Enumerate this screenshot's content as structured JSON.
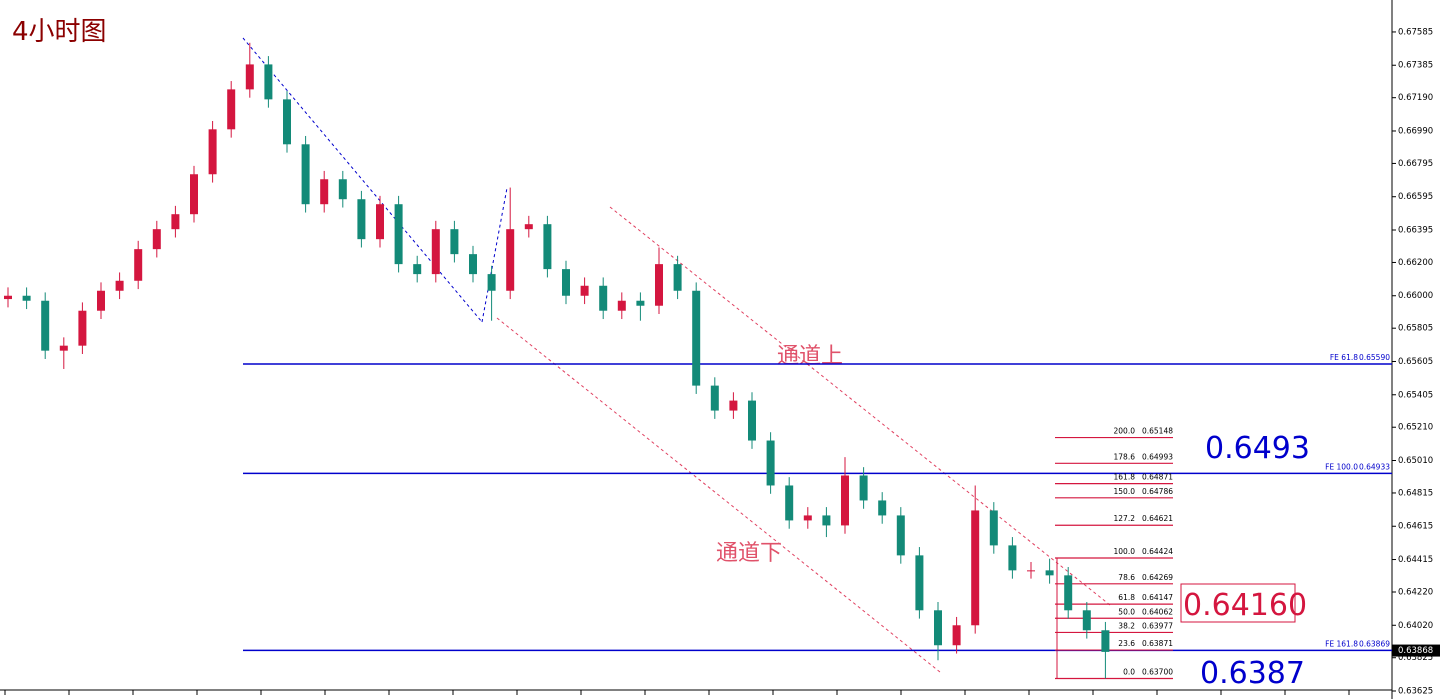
{
  "chart_data": {
    "type": "candlestick",
    "title": "4小时图",
    "ylim": [
      0.63577,
      0.67777
    ],
    "yticks": [
      0.67585,
      0.67385,
      {
        "value": 0.6719,
        "label": "0.67190"
      },
      {
        "value": 0.6699,
        "label": "0.66990"
      },
      0.66795,
      0.66595,
      0.66395,
      {
        "value": 0.662,
        "label": "0.66200"
      },
      {
        "value": 0.66,
        "label": "0.66000"
      },
      0.65805,
      0.65605,
      0.65405,
      {
        "value": 0.6521,
        "label": "0.65210"
      },
      {
        "value": 0.6501,
        "label": "0.65010"
      },
      0.64815,
      0.64615,
      0.64415,
      {
        "value": 0.6422,
        "label": "0.64220"
      },
      {
        "value": 0.6402,
        "label": "0.64020"
      },
      0.63825,
      0.63625
    ],
    "up_color": "#d4163f",
    "down_color": "#138a78",
    "open": [
      0.6598,
      0.66,
      0.6597,
      0.6567,
      0.657,
      0.6591,
      0.6603,
      0.6609,
      0.6628,
      0.664,
      0.6649,
      0.6673,
      0.67,
      0.6724,
      0.6739,
      0.6718,
      0.6691,
      0.6655,
      0.667,
      0.6658,
      0.6634,
      0.6655,
      0.6619,
      0.6613,
      0.664,
      0.6625,
      0.6613,
      0.6603,
      0.664,
      0.6643,
      0.6616,
      0.66,
      0.6606,
      0.6591,
      0.6597,
      0.6594,
      0.6619,
      0.6603,
      0.6546,
      0.6531,
      0.6537,
      0.6513,
      0.6486,
      0.6465,
      0.6468,
      0.6462,
      0.6492,
      0.6477,
      0.6468,
      0.6444,
      0.6411,
      0.639,
      0.6402,
      0.6471,
      0.645,
      0.6435,
      0.6435,
      0.6432,
      0.6411,
      0.6399
    ],
    "high": [
      0.6605,
      0.6605,
      0.6602,
      0.6575,
      0.6596,
      0.6608,
      0.6614,
      0.6633,
      0.6645,
      0.6654,
      0.6678,
      0.6705,
      0.6729,
      0.6752,
      0.6744,
      0.6723,
      0.6696,
      0.6675,
      0.6675,
      0.6663,
      0.666,
      0.666,
      0.6624,
      0.6645,
      0.6645,
      0.663,
      0.6618,
      0.6665,
      0.6648,
      0.6648,
      0.6621,
      0.6611,
      0.6611,
      0.6602,
      0.6602,
      0.6629,
      0.6624,
      0.6608,
      0.6551,
      0.6542,
      0.6542,
      0.6518,
      0.6491,
      0.6473,
      0.6473,
      0.6503,
      0.6497,
      0.6482,
      0.6473,
      0.6449,
      0.6416,
      0.6407,
      0.6486,
      0.6476,
      0.6455,
      0.644,
      0.6442,
      0.6437,
      0.6416,
      0.6404
    ],
    "low": [
      0.6593,
      0.6592,
      0.6562,
      0.6556,
      0.6565,
      0.6586,
      0.6598,
      0.6604,
      0.6623,
      0.6635,
      0.6644,
      0.6668,
      0.6695,
      0.6719,
      0.6713,
      0.6686,
      0.665,
      0.665,
      0.6653,
      0.6629,
      0.6629,
      0.6614,
      0.6608,
      0.6608,
      0.662,
      0.6608,
      0.6585,
      0.6598,
      0.6635,
      0.6611,
      0.6595,
      0.6595,
      0.6586,
      0.6586,
      0.6585,
      0.6589,
      0.6598,
      0.6541,
      0.6526,
      0.6526,
      0.6508,
      0.6481,
      0.646,
      0.646,
      0.6455,
      0.6457,
      0.6472,
      0.6463,
      0.6439,
      0.6406,
      0.6381,
      0.6385,
      0.6397,
      0.6445,
      0.643,
      0.643,
      0.6427,
      0.6406,
      0.6394,
      0.637
    ],
    "close": [
      0.66,
      0.6597,
      0.6567,
      0.657,
      0.6591,
      0.6603,
      0.6609,
      0.6628,
      0.664,
      0.6649,
      0.6673,
      0.67,
      0.6724,
      0.6739,
      0.6718,
      0.6691,
      0.6655,
      0.667,
      0.6658,
      0.6634,
      0.6655,
      0.6619,
      0.6613,
      0.664,
      0.6625,
      0.6613,
      0.6603,
      0.664,
      0.6643,
      0.6616,
      0.66,
      0.6606,
      0.6591,
      0.6597,
      0.6594,
      0.6619,
      0.6603,
      0.6546,
      0.6531,
      0.6537,
      0.6513,
      0.6486,
      0.6465,
      0.6468,
      0.6462,
      0.6492,
      0.6477,
      0.6468,
      0.6444,
      0.6411,
      0.639,
      0.6402,
      0.6471,
      0.645,
      0.6435,
      0.6435,
      0.6432,
      0.6411,
      0.6399,
      0.6386
    ],
    "current_price": 0.63868,
    "fe_lines": [
      {
        "label": "FE 61.8",
        "value": 0.6559,
        "value_label": "0.65590"
      },
      {
        "label": "FE 100.0",
        "value": 0.64933
      },
      {
        "label": "FE 161.8",
        "value": 0.63869
      }
    ],
    "fe_color": "#0000cc",
    "fib_levels": [
      {
        "ratio": "200.0",
        "value": 0.65148
      },
      {
        "ratio": "178.6",
        "value": 0.64993
      },
      {
        "ratio": "161.8",
        "value": 0.64871
      },
      {
        "ratio": "150.0",
        "value": 0.64786
      },
      {
        "ratio": "127.2",
        "value": 0.64621
      },
      {
        "ratio": "100.0",
        "value": 0.64424
      },
      {
        "ratio": "78.6",
        "value": 0.64269
      },
      {
        "ratio": "61.8",
        "value": 0.64147
      },
      {
        "ratio": "50.0",
        "value": 0.64062
      },
      {
        "ratio": "38.2",
        "value": 0.63977
      },
      {
        "ratio": "23.6",
        "value": 0.63871
      },
      {
        "ratio": "0.0",
        "value": 0.637,
        "value_label": "0.63700"
      }
    ],
    "fib_color": "#d4163f",
    "annotations": {
      "channel_upper": "通道上",
      "channel_lower": "通道下",
      "target_high": "0.6493",
      "target_mid": "0.64160",
      "target_low": "0.6387"
    }
  }
}
